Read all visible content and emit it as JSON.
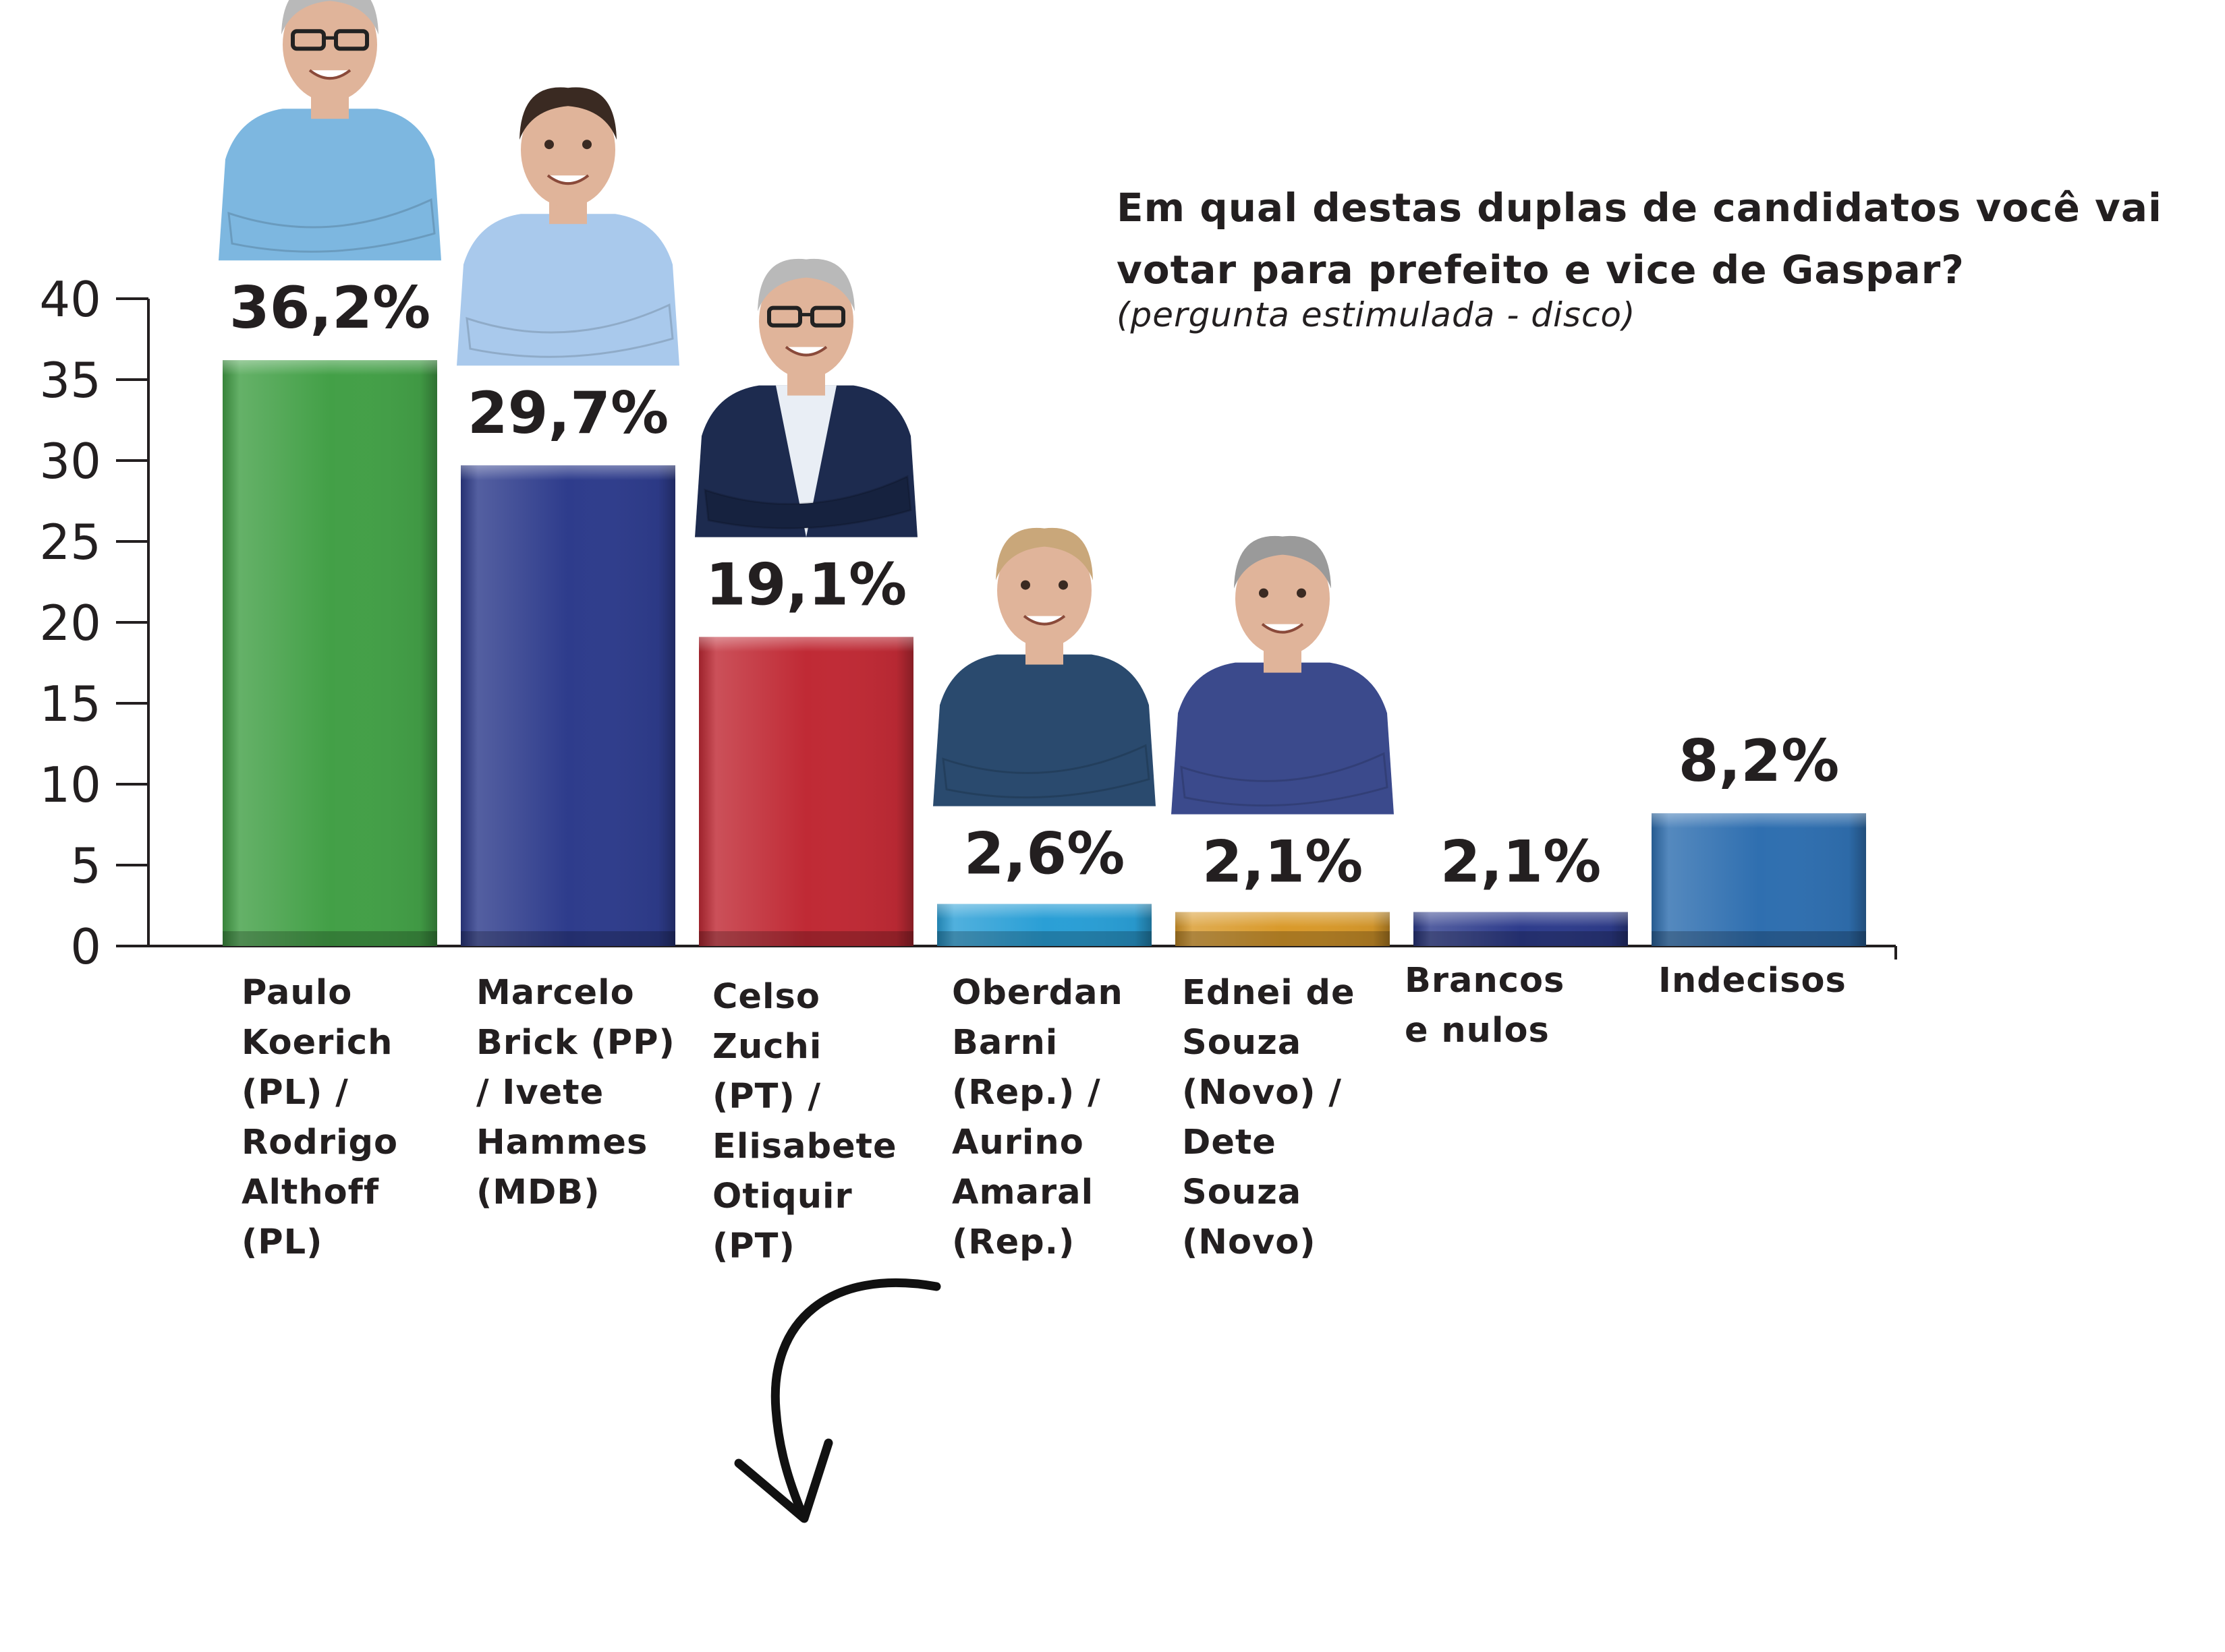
{
  "chart_data": {
    "type": "bar",
    "title": "Em qual destas duplas de candidatos você vai votar para prefeito e vice de Gaspar?",
    "subtitle": "(pergunta estimulada - disco)",
    "ylim": [
      0,
      40
    ],
    "yticks": [
      0,
      5,
      10,
      15,
      20,
      25,
      30,
      35,
      40
    ],
    "grid": false,
    "categories": [
      "Paulo Koerich (PL) / Rodrigo Althoff (PL)",
      "Marcelo Brick (PP) / Ivete Hammes (MDB)",
      "Celso Zuchi (PT) / Elisabete Otiquir (PT)",
      "Oberdan Barni (Rep.) / Aurino Amaral (Rep.)",
      "Ednei de Souza (Novo) / Dete Souza (Novo)",
      "Brancos e nulos",
      "Indecisos"
    ],
    "values": [
      36.2,
      29.7,
      19.1,
      2.6,
      2.1,
      2.1,
      8.2
    ],
    "value_labels": [
      "36,2%",
      "29,7%",
      "19,1%",
      "2,6%",
      "2,1%",
      "2,1%",
      "8,2%"
    ],
    "colors": [
      "#43a047",
      "#2e3c8c",
      "#c02a35",
      "#2a9fd6",
      "#d99a2b",
      "#2e3c8c",
      "#2f6fb0"
    ],
    "has_photo": [
      true,
      true,
      true,
      true,
      true,
      false,
      false
    ]
  },
  "colors": {
    "text": "#231f20",
    "axis": "#231f20",
    "skin": "#e0b49a",
    "hair_gray": "#b9b9b9",
    "hair_dark": "#3a2a22",
    "shirt_light_blue": "#7db7e0",
    "shirt_light": "#a9c9ec",
    "suit_navy": "#1d2b4f",
    "shirt_navy": "#2a4a6e",
    "shirt_striped": "#3b4a8c"
  },
  "icons": {
    "arrow": "curved-arrow-down-icon"
  }
}
